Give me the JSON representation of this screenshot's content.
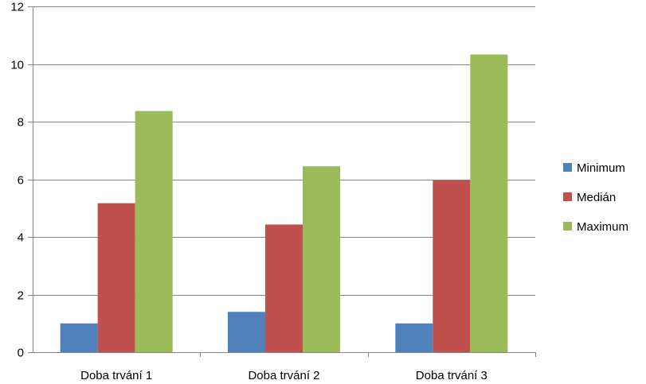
{
  "chart_data": {
    "type": "bar",
    "title": "",
    "xlabel": "",
    "ylabel": "",
    "categories": [
      "Doba trvání 1",
      "Doba trvání 2",
      "Doba trvání 3"
    ],
    "series": [
      {
        "name": "Minimum",
        "color": "#4F81BD",
        "values": [
          1.0,
          1.4,
          1.0
        ]
      },
      {
        "name": "Medián",
        "color": "#C0504D",
        "values": [
          5.17,
          4.43,
          5.97
        ]
      },
      {
        "name": "Maximum",
        "color": "#9BBB59",
        "values": [
          8.37,
          6.45,
          10.33
        ]
      }
    ],
    "ylim": [
      0,
      12
    ],
    "yticks": [
      "0",
      "2",
      "4",
      "6",
      "8",
      "10",
      "12"
    ],
    "grid": true,
    "legend_position": "right"
  }
}
